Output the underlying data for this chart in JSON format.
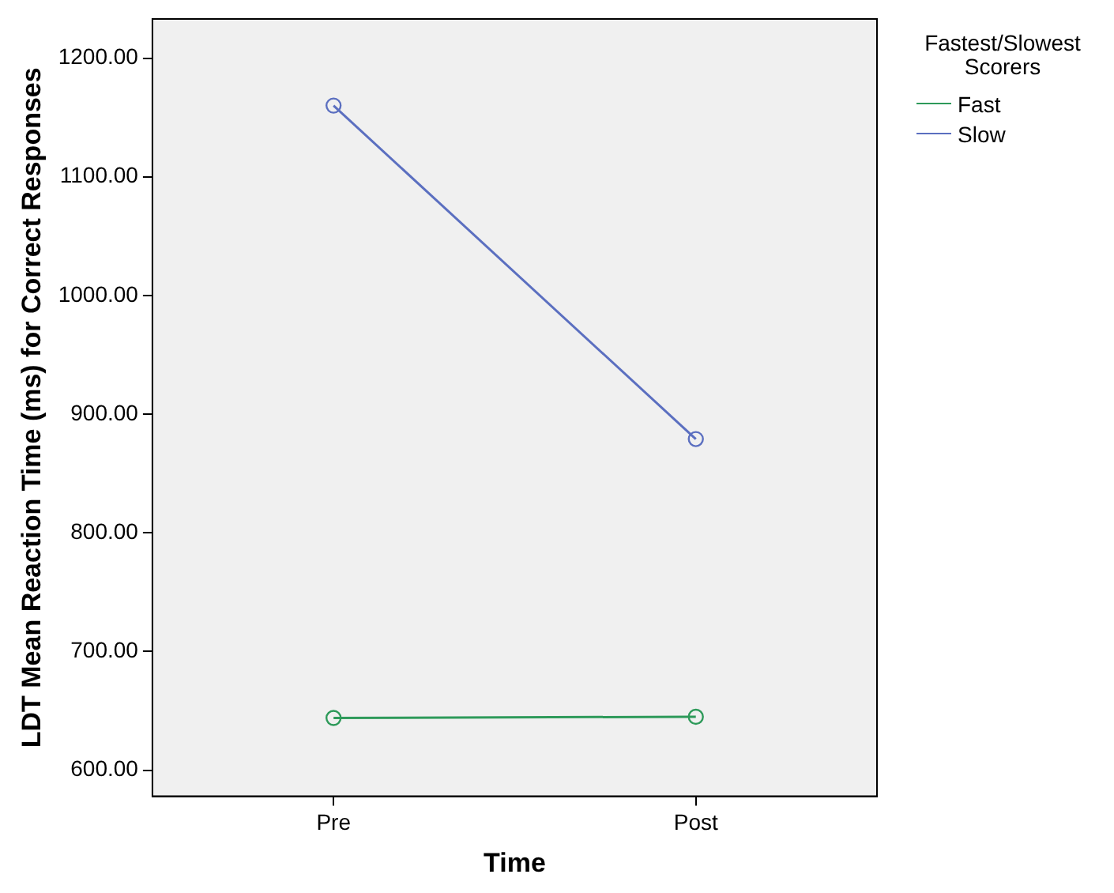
{
  "chart_data": {
    "type": "line",
    "xlabel": "Time",
    "ylabel": "LDT Mean Reaction Time (ms) for Correct Responses",
    "legend_title": "Fastest/Slowest Scorers",
    "categories": [
      "Pre",
      "Post"
    ],
    "series": [
      {
        "name": "Fast",
        "color": "#2e9a5a",
        "values": [
          644,
          645
        ]
      },
      {
        "name": "Slow",
        "color": "#5b6fc0",
        "values": [
          1160,
          879
        ]
      }
    ],
    "ylim": [
      578,
      1233
    ],
    "yticks": [
      {
        "value": 600,
        "label": "600.00"
      },
      {
        "value": 700,
        "label": "700.00"
      },
      {
        "value": 800,
        "label": "800.00"
      },
      {
        "value": 900,
        "label": "900.00"
      },
      {
        "value": 1000,
        "label": "1000.00"
      },
      {
        "value": 1100,
        "label": "1100.00"
      },
      {
        "value": 1200,
        "label": "1200.00"
      }
    ],
    "grid": false,
    "legend": "right",
    "marker": "circle",
    "line_style": "solid"
  }
}
